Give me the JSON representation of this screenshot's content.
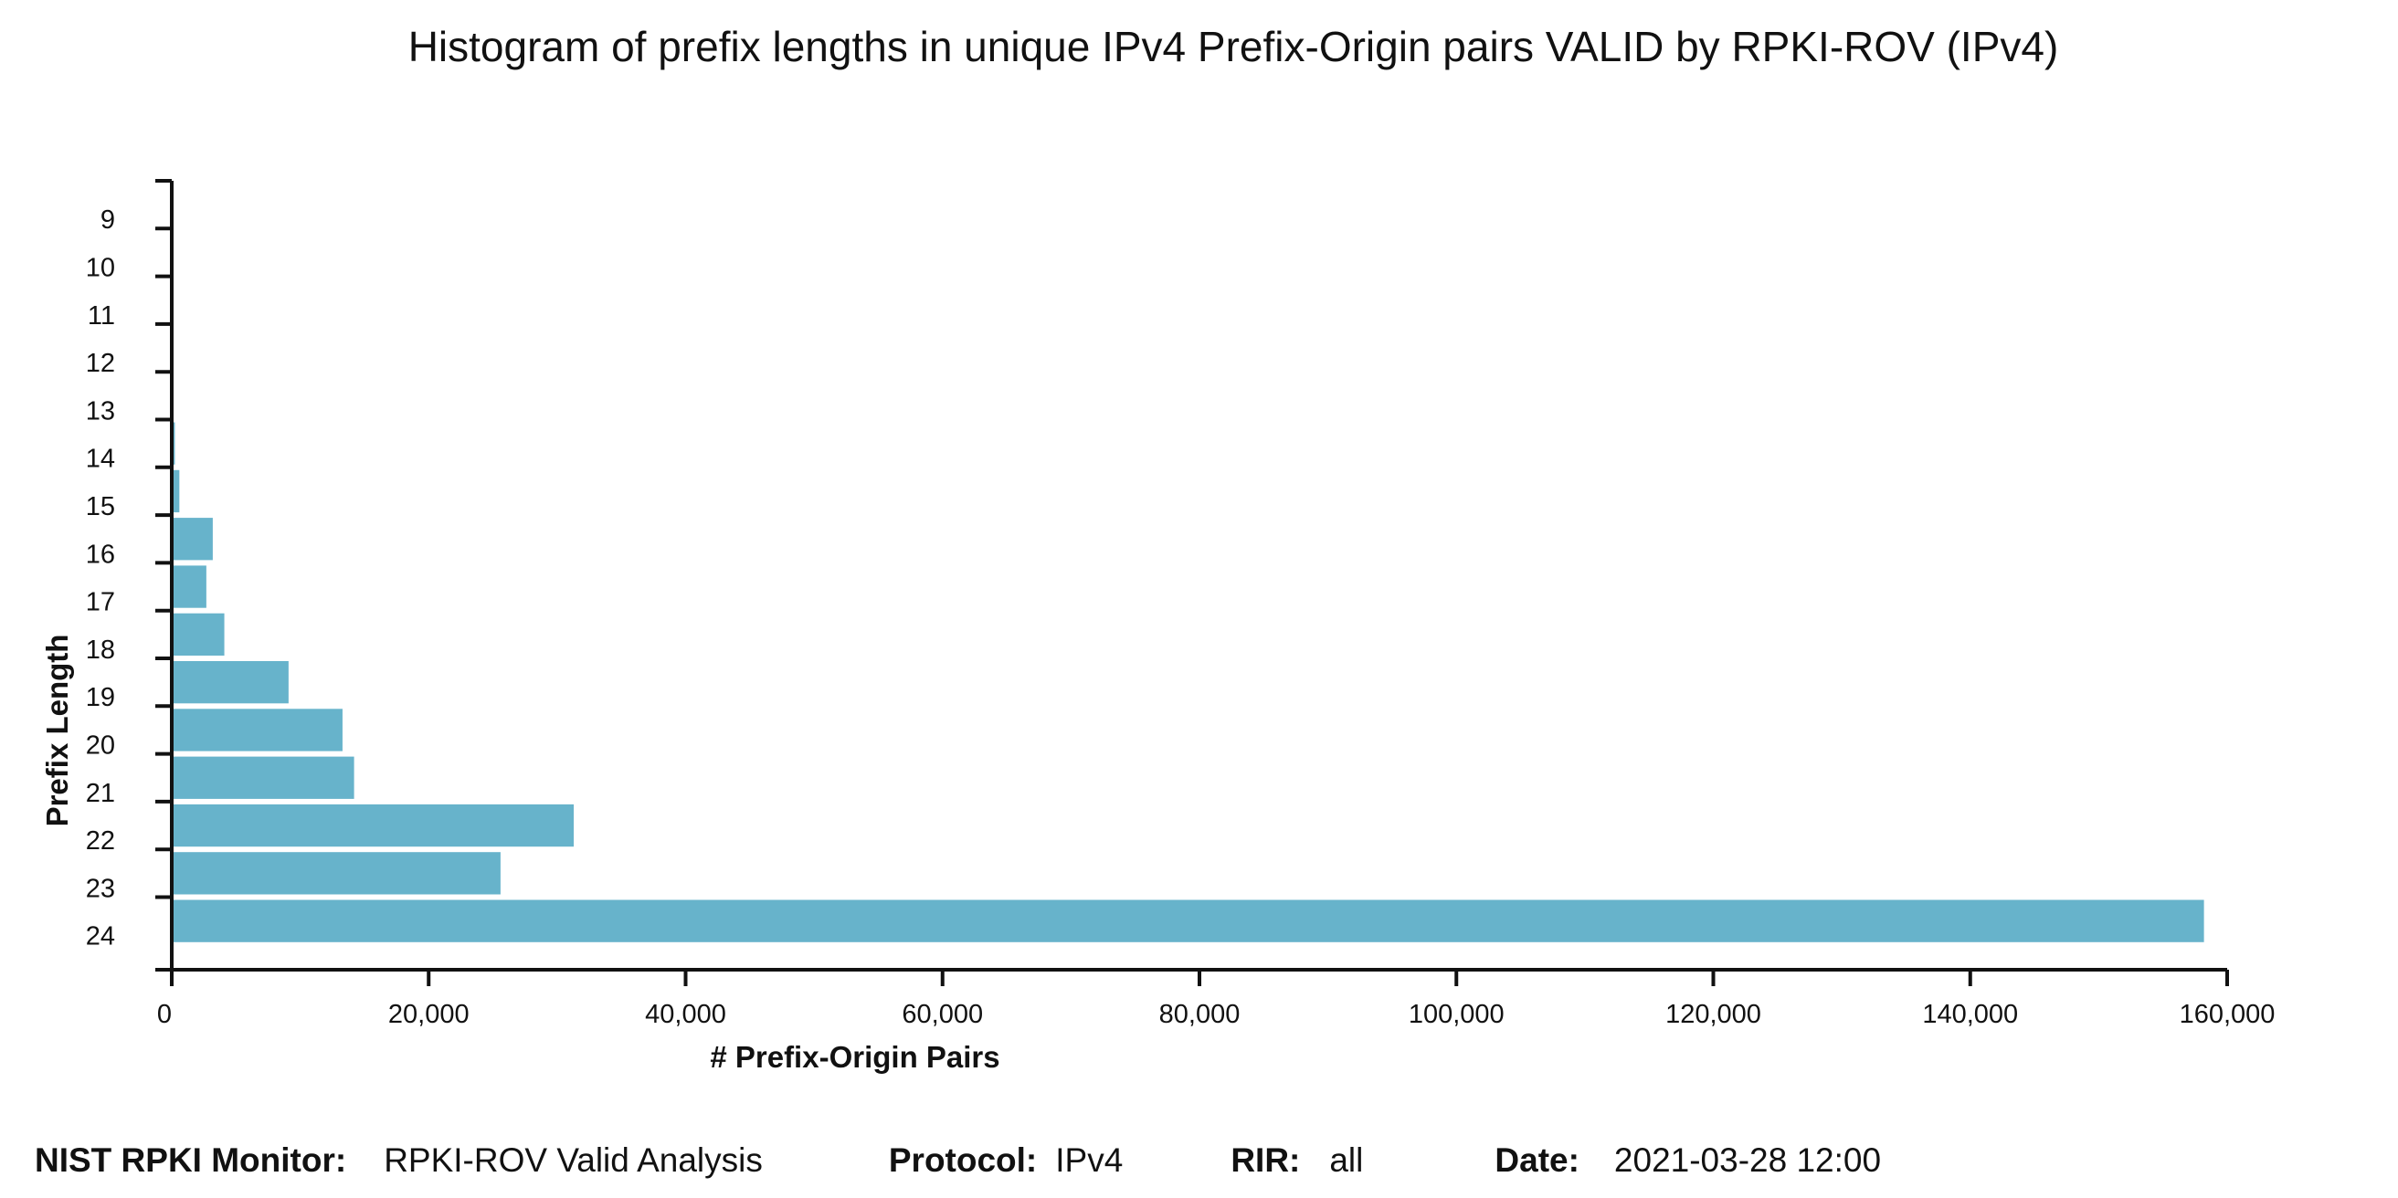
{
  "chart_data": {
    "type": "bar",
    "orientation": "horizontal",
    "title": "Histogram of prefix lengths in unique IPv4 Prefix-Origin pairs VALID by RPKI-ROV (IPv4)",
    "xlabel": "# Prefix-Origin Pairs",
    "ylabel": "Prefix Length",
    "categories": [
      "9",
      "10",
      "11",
      "12",
      "13",
      "14",
      "15",
      "16",
      "17",
      "18",
      "19",
      "20",
      "21",
      "22",
      "23",
      "24"
    ],
    "values": [
      0,
      5,
      10,
      60,
      150,
      350,
      700,
      3300,
      2800,
      4200,
      9200,
      13400,
      14300,
      31400,
      25700,
      158300
    ],
    "xlim": [
      0,
      160000
    ],
    "xticks": [
      0,
      20000,
      40000,
      60000,
      80000,
      100000,
      120000,
      140000,
      160000
    ],
    "xtick_labels": [
      "0",
      "20,000",
      "40,000",
      "60,000",
      "80,000",
      "100,000",
      "120,000",
      "140,000",
      "160,000"
    ],
    "grid": false,
    "legend": "none",
    "bar_color": "#67b3cb"
  },
  "footer": {
    "monitor_key": "NIST RPKI Monitor:",
    "monitor_value": "RPKI-ROV Valid Analysis",
    "protocol_key": "Protocol:",
    "protocol_value": "IPv4",
    "rir_key": "RIR:",
    "rir_value": "all",
    "date_key": "Date:",
    "date_value": "2021-03-28 12:00"
  }
}
